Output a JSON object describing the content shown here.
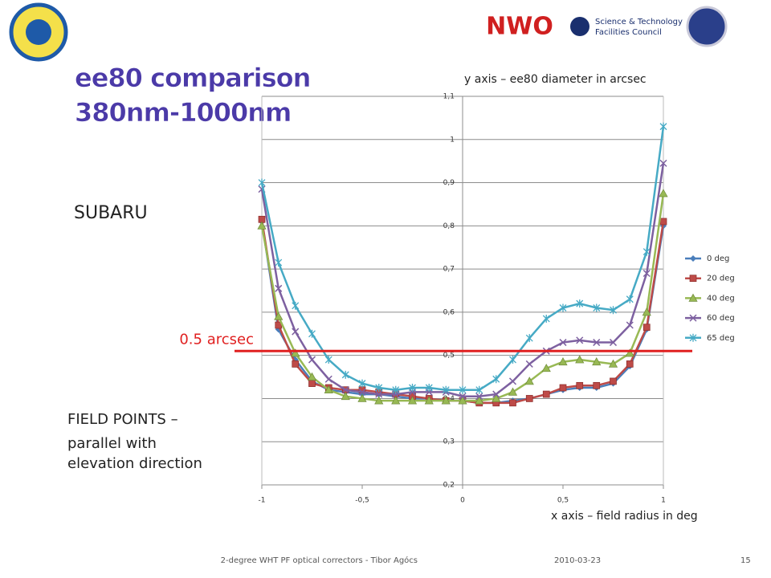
{
  "logos": {
    "nwo": "NWO",
    "stfc_line1": "Science & Technology",
    "stfc_line2": "Facilities Council"
  },
  "slide_title": [
    "ee80 comparison",
    "380nm-1000nm"
  ],
  "subtitle": "SUBARU",
  "note": [
    "FIELD POINTS –",
    "parallel with",
    "elevation direction"
  ],
  "footer": {
    "text": "2-degree WHT PF optical correctors - Tibor Agócs",
    "date": "2010-03-23",
    "page": "15"
  },
  "chart_data": {
    "type": "line",
    "y_axis_label": "y axis – ee80 diameter in arcsec",
    "x_axis_label": "x axis – field radius in deg",
    "x": [
      -1,
      -0.917,
      -0.833,
      -0.75,
      -0.667,
      -0.583,
      -0.5,
      -0.417,
      -0.333,
      -0.25,
      -0.167,
      -0.083,
      0,
      0.083,
      0.167,
      0.25,
      0.333,
      0.417,
      0.5,
      0.583,
      0.667,
      0.75,
      0.833,
      0.917,
      1
    ],
    "series": [
      {
        "name": "0 deg",
        "color": "#4a7ebb",
        "marker": "diamond",
        "values": [
          0.81,
          0.56,
          0.49,
          0.44,
          0.42,
          0.415,
          0.41,
          0.41,
          0.405,
          0.4,
          0.4,
          0.395,
          0.395,
          0.39,
          0.39,
          0.395,
          0.4,
          0.41,
          0.42,
          0.425,
          0.425,
          0.435,
          0.475,
          0.56,
          0.8
        ]
      },
      {
        "name": "20 deg",
        "color": "#be4b48",
        "marker": "square",
        "values": [
          0.815,
          0.57,
          0.48,
          0.435,
          0.425,
          0.42,
          0.42,
          0.415,
          0.41,
          0.405,
          0.4,
          0.395,
          0.395,
          0.39,
          0.39,
          0.39,
          0.4,
          0.41,
          0.425,
          0.43,
          0.43,
          0.44,
          0.48,
          0.565,
          0.81
        ]
      },
      {
        "name": "40 deg",
        "color": "#98b954",
        "marker": "triangle",
        "values": [
          0.8,
          0.59,
          0.505,
          0.45,
          0.42,
          0.405,
          0.4,
          0.395,
          0.395,
          0.395,
          0.395,
          0.395,
          0.395,
          0.395,
          0.4,
          0.415,
          0.44,
          0.47,
          0.485,
          0.49,
          0.485,
          0.48,
          0.505,
          0.6,
          0.875
        ]
      },
      {
        "name": "60 deg",
        "color": "#7d60a0",
        "marker": "x",
        "values": [
          0.885,
          0.655,
          0.555,
          0.49,
          0.445,
          0.42,
          0.415,
          0.41,
          0.41,
          0.415,
          0.415,
          0.415,
          0.405,
          0.405,
          0.41,
          0.44,
          0.48,
          0.51,
          0.53,
          0.535,
          0.53,
          0.53,
          0.57,
          0.69,
          0.945
        ]
      },
      {
        "name": "65 deg",
        "color": "#46aac5",
        "marker": "star",
        "values": [
          0.9,
          0.715,
          0.615,
          0.55,
          0.49,
          0.455,
          0.435,
          0.425,
          0.42,
          0.425,
          0.425,
          0.42,
          0.42,
          0.42,
          0.445,
          0.49,
          0.54,
          0.585,
          0.61,
          0.62,
          0.61,
          0.605,
          0.63,
          0.74,
          1.03
        ]
      }
    ],
    "xlim": [
      -1,
      1
    ],
    "xticks": [
      -1,
      {
        "value": -0.5,
        "label": "-0,5"
      },
      0,
      {
        "value": 0.5,
        "label": "0,5"
      },
      1
    ],
    "ylim": [
      0.2,
      1.1
    ],
    "yticks": [
      {
        "value": 0.2,
        "label": "0,2"
      },
      {
        "value": 0.3,
        "label": "0,3"
      },
      {
        "value": 0.4,
        "label": "0,4"
      },
      {
        "value": 0.5,
        "label": "0,5"
      },
      {
        "value": 0.6,
        "label": "0,6"
      },
      {
        "value": 0.7,
        "label": "0,7"
      },
      {
        "value": 0.8,
        "label": "0,8"
      },
      {
        "value": 0.9,
        "label": "0,9"
      },
      1,
      {
        "value": 1.1,
        "label": "1,1"
      }
    ],
    "grid": true,
    "legend": "right",
    "threshold": {
      "value": 0.51,
      "label": "0.5 arcsec",
      "color": "#e02020"
    }
  }
}
